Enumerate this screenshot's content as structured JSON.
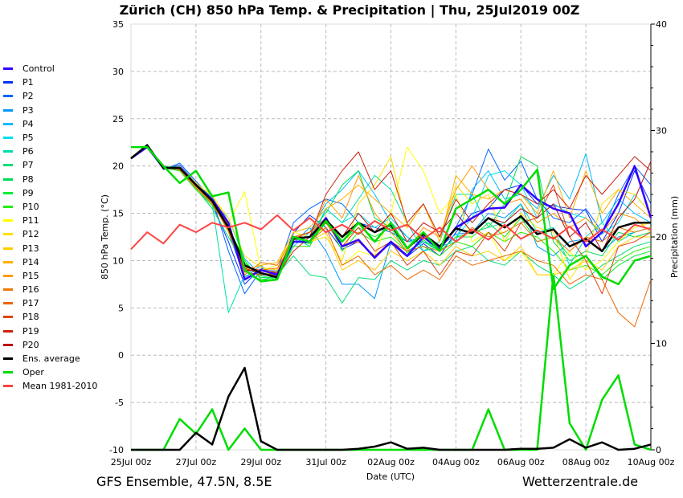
{
  "chart_data": {
    "type": "line",
    "title": "Zürich  (CH)  850 hPa Temp. & Precipitation | Thu, 25Jul2019 00Z",
    "xlabel": "Date (UTC)",
    "ylabel": "850 hPa Temp. (°C)",
    "ylabel_right": "Precipitation (mm)",
    "ylim": [
      -10,
      35
    ],
    "ylim_right": [
      0,
      40
    ],
    "yticks": [
      -10,
      -5,
      0,
      5,
      10,
      15,
      20,
      25,
      30,
      35
    ],
    "yticks_right": [
      0,
      10,
      20,
      30,
      40
    ],
    "x_step_hours": 12,
    "x_range_hours": [
      0,
      384
    ],
    "xtick_labels": [
      "25Jul 00z",
      "27Jul 00z",
      "29Jul 00z",
      "31Jul 00z",
      "02Aug 00z",
      "04Aug 00z",
      "06Aug 00z",
      "08Aug 00z",
      "10Aug 00z"
    ],
    "grid": true,
    "legend_position": "left-outside",
    "temperature_series": [
      {
        "name": "Control",
        "color": "#3300ff",
        "width": 2.5,
        "values": [
          20.8,
          22.0,
          19.8,
          19.8,
          18.0,
          16.5,
          14.0,
          8.0,
          9.0,
          8.5,
          12.0,
          12.0,
          14.5,
          11.5,
          12.2,
          10.3,
          12.0,
          10.5,
          12.5,
          11.2,
          13.5,
          14.5,
          15.5,
          15.6,
          18.0,
          16.5,
          15.5,
          15.0,
          11.5,
          13.0,
          16.0,
          20.0,
          14.5
        ]
      },
      {
        "name": "P1",
        "color": "#0033ff",
        "width": 1,
        "values": [
          20.9,
          22.1,
          19.7,
          20.1,
          18.2,
          16.0,
          12.0,
          7.5,
          9.2,
          8.6,
          12.9,
          14.8,
          13.5,
          11.2,
          12.0,
          10.5,
          11.8,
          10.4,
          11.8,
          10.5,
          13.0,
          15.0,
          15.5,
          17.5,
          18.0,
          16.0,
          15.8,
          15.5,
          15.3,
          12.0,
          15.0,
          19.5,
          16.0
        ]
      },
      {
        "name": "P2",
        "color": "#0066ff",
        "width": 1,
        "values": [
          20.8,
          22.3,
          19.6,
          20.3,
          18.4,
          16.5,
          11.0,
          6.5,
          9.0,
          8.9,
          14.0,
          15.5,
          16.5,
          16.0,
          14.0,
          13.5,
          13.0,
          12.0,
          12.5,
          11.5,
          13.5,
          17.0,
          21.8,
          18.5,
          20.5,
          16.5,
          14.5,
          14.0,
          15.5,
          13.0,
          17.0,
          20.0,
          18.0
        ]
      },
      {
        "name": "P3",
        "color": "#0099ff",
        "width": 1,
        "values": [
          20.8,
          22.0,
          20.0,
          19.6,
          18.0,
          16.4,
          13.0,
          8.2,
          9.5,
          8.0,
          11.8,
          13.5,
          11.0,
          7.5,
          7.5,
          6.0,
          12.0,
          11.0,
          12.0,
          11.5,
          12.8,
          13.0,
          15.0,
          14.5,
          16.0,
          11.5,
          10.5,
          12.0,
          12.3,
          11.0,
          12.5,
          13.0,
          13.5
        ]
      },
      {
        "name": "P4",
        "color": "#00bbff",
        "width": 1,
        "values": [
          20.9,
          22.2,
          19.8,
          19.9,
          17.8,
          16.2,
          14.5,
          10.2,
          8.5,
          8.4,
          11.5,
          13.0,
          16.0,
          17.5,
          19.5,
          17.0,
          14.0,
          12.5,
          11.0,
          11.5,
          12.0,
          17.5,
          19.5,
          16.5,
          17.0,
          15.5,
          19.0,
          16.5,
          21.3,
          14.0,
          16.5,
          15.0,
          14.0
        ]
      },
      {
        "name": "P5",
        "color": "#00ddee",
        "width": 1,
        "values": [
          20.8,
          22.2,
          19.8,
          19.8,
          17.9,
          16.8,
          13.2,
          9.0,
          8.6,
          8.7,
          12.0,
          12.0,
          15.5,
          14.0,
          15.0,
          13.5,
          14.5,
          12.5,
          11.5,
          11.0,
          12.5,
          14.5,
          19.0,
          19.5,
          18.0,
          14.5,
          16.0,
          15.0,
          14.5,
          12.8,
          14.0,
          17.0,
          15.0
        ]
      },
      {
        "name": "P6",
        "color": "#00ddaa",
        "width": 1,
        "values": [
          20.8,
          22.2,
          19.8,
          19.5,
          17.5,
          16.0,
          4.5,
          8.5,
          8.0,
          8.3,
          12.5,
          11.5,
          15.5,
          14.0,
          16.5,
          19.0,
          17.5,
          14.0,
          11.0,
          12.0,
          17.0,
          17.0,
          13.5,
          14.0,
          16.0,
          13.0,
          13.5,
          9.5,
          12.5,
          14.0,
          12.0,
          13.0,
          13.5
        ]
      },
      {
        "name": "P7",
        "color": "#00dd77",
        "width": 1,
        "values": [
          20.8,
          22.2,
          19.9,
          19.7,
          17.6,
          15.5,
          12.5,
          9.5,
          8.7,
          8.5,
          10.5,
          8.5,
          8.2,
          5.5,
          8.2,
          8.0,
          10.0,
          9.0,
          10.0,
          9.5,
          11.0,
          11.5,
          10.0,
          9.5,
          11.0,
          9.5,
          8.5,
          7.0,
          8.0,
          9.5,
          10.5,
          11.5,
          12.0
        ]
      },
      {
        "name": "P8",
        "color": "#00dd55",
        "width": 1,
        "values": [
          20.8,
          22.3,
          19.8,
          19.6,
          17.8,
          16.2,
          13.0,
          9.8,
          8.2,
          8.3,
          12.5,
          13.0,
          15.0,
          18.0,
          19.5,
          14.5,
          13.5,
          12.0,
          12.0,
          11.0,
          12.5,
          13.0,
          13.5,
          16.0,
          21.0,
          20.0,
          12.0,
          10.0,
          11.0,
          10.5,
          13.0,
          12.5,
          13.0
        ]
      },
      {
        "name": "P9",
        "color": "#00ee33",
        "width": 1,
        "values": [
          20.8,
          22.1,
          19.9,
          19.9,
          18.1,
          16.4,
          13.6,
          9.6,
          8.4,
          8.0,
          12.0,
          11.8,
          14.0,
          12.0,
          13.5,
          12.5,
          13.5,
          10.8,
          12.2,
          11.0,
          12.5,
          12.5,
          14.0,
          12.5,
          14.5,
          12.0,
          12.5,
          10.5,
          10.5,
          8.0,
          9.5,
          10.5,
          11.0
        ]
      },
      {
        "name": "P10",
        "color": "#22ee00",
        "width": 1,
        "values": [
          20.8,
          22.2,
          19.8,
          19.5,
          17.5,
          15.8,
          13.5,
          10.0,
          8.0,
          8.0,
          11.5,
          11.5,
          14.5,
          11.0,
          13.0,
          12.0,
          12.5,
          11.0,
          11.5,
          10.5,
          12.0,
          11.5,
          13.0,
          12.0,
          13.0,
          12.5,
          11.0,
          9.0,
          9.5,
          8.5,
          10.0,
          11.0,
          11.5
        ]
      },
      {
        "name": "P11",
        "color": "#ffff00",
        "width": 1,
        "values": [
          20.9,
          22.0,
          19.7,
          19.8,
          18.0,
          17.0,
          14.0,
          17.3,
          9.0,
          9.5,
          13.0,
          12.5,
          13.5,
          9.5,
          11.0,
          10.5,
          15.0,
          22.0,
          19.5,
          15.0,
          17.0,
          12.0,
          13.0,
          10.0,
          11.0,
          8.5,
          8.5,
          11.0,
          9.0,
          10.0,
          12.0,
          13.5,
          14.0
        ]
      },
      {
        "name": "P12",
        "color": "#ffe000",
        "width": 1,
        "values": [
          20.9,
          22.0,
          19.7,
          19.9,
          18.2,
          16.8,
          14.5,
          10.5,
          9.3,
          9.0,
          12.5,
          12.0,
          12.5,
          10.0,
          16.0,
          18.0,
          21.0,
          13.5,
          16.0,
          12.5,
          18.0,
          16.0,
          17.0,
          12.0,
          15.0,
          13.5,
          13.0,
          8.0,
          10.5,
          16.0,
          17.5,
          17.0,
          15.0
        ]
      },
      {
        "name": "P13",
        "color": "#ffcc00",
        "width": 1,
        "values": [
          20.8,
          22.1,
          19.8,
          19.8,
          18.0,
          16.3,
          13.0,
          9.2,
          8.7,
          8.5,
          12.0,
          12.0,
          13.0,
          9.0,
          10.0,
          9.0,
          11.0,
          10.0,
          11.0,
          9.5,
          11.5,
          10.5,
          11.0,
          10.0,
          11.5,
          8.5,
          8.5,
          9.0,
          10.0,
          9.0,
          11.5,
          12.5,
          12.5
        ]
      },
      {
        "name": "P14",
        "color": "#ffb000",
        "width": 1,
        "values": [
          20.9,
          22.2,
          19.7,
          19.8,
          18.0,
          16.5,
          13.8,
          9.0,
          9.5,
          9.8,
          13.0,
          13.5,
          15.5,
          16.5,
          18.0,
          16.5,
          15.0,
          13.5,
          16.0,
          12.0,
          19.0,
          17.0,
          16.5,
          17.5,
          17.0,
          15.0,
          19.5,
          14.5,
          19.5,
          15.0,
          17.5,
          16.0,
          14.5
        ]
      },
      {
        "name": "P15",
        "color": "#ff9900",
        "width": 1,
        "values": [
          20.8,
          22.1,
          19.8,
          19.7,
          17.8,
          16.1,
          13.4,
          9.0,
          9.0,
          8.8,
          12.2,
          12.5,
          16.5,
          14.5,
          19.0,
          15.0,
          13.0,
          11.0,
          13.5,
          12.5,
          17.5,
          20.0,
          17.5,
          16.0,
          16.5,
          14.0,
          15.0,
          13.5,
          14.5,
          13.0,
          15.0,
          14.5,
          13.0
        ]
      },
      {
        "name": "P16",
        "color": "#ee7700",
        "width": 1,
        "values": [
          20.8,
          22.2,
          19.9,
          19.6,
          17.7,
          16.0,
          13.2,
          8.5,
          9.8,
          9.5,
          12.5,
          13.0,
          14.0,
          11.5,
          12.0,
          10.5,
          12.0,
          11.0,
          11.5,
          11.0,
          12.0,
          13.5,
          12.5,
          13.0,
          14.0,
          12.0,
          12.5,
          11.0,
          12.5,
          12.0,
          13.5,
          13.0,
          13.5
        ]
      },
      {
        "name": "P17",
        "color": "#ee6600",
        "width": 1,
        "values": [
          20.8,
          22.1,
          19.8,
          19.7,
          17.9,
          16.5,
          13.5,
          9.3,
          9.0,
          9.2,
          12.0,
          12.0,
          13.5,
          9.5,
          10.5,
          8.5,
          9.5,
          8.0,
          9.0,
          8.0,
          10.5,
          9.5,
          10.0,
          10.5,
          11.0,
          10.0,
          9.5,
          7.5,
          8.5,
          8.0,
          4.5,
          3.0,
          8.0
        ]
      },
      {
        "name": "P18",
        "color": "#dd4411",
        "width": 1,
        "values": [
          20.8,
          22.2,
          19.8,
          19.8,
          18.1,
          16.3,
          13.2,
          8.8,
          8.5,
          8.6,
          12.3,
          13.0,
          14.5,
          11.5,
          13.5,
          11.0,
          12.0,
          9.5,
          11.0,
          8.5,
          11.0,
          10.5,
          13.0,
          11.0,
          14.0,
          14.5,
          18.0,
          12.5,
          10.0,
          6.5,
          11.5,
          12.0,
          13.0
        ]
      },
      {
        "name": "P19",
        "color": "#cc2211",
        "width": 1,
        "values": [
          20.8,
          22.2,
          19.8,
          19.8,
          18.0,
          16.2,
          13.4,
          9.2,
          8.6,
          8.4,
          11.0,
          12.5,
          17.0,
          19.5,
          21.5,
          17.5,
          19.5,
          14.0,
          16.0,
          12.5,
          16.5,
          14.0,
          16.0,
          17.5,
          17.0,
          16.0,
          17.5,
          15.5,
          19.0,
          17.0,
          19.0,
          21.0,
          19.5
        ]
      },
      {
        "name": "P20",
        "color": "#bb1111",
        "width": 1,
        "values": [
          20.8,
          22.2,
          19.8,
          19.8,
          18.0,
          16.4,
          13.6,
          9.0,
          8.9,
          8.7,
          12.5,
          12.5,
          14.0,
          12.5,
          15.0,
          13.0,
          15.0,
          12.0,
          14.0,
          13.0,
          15.0,
          13.0,
          14.5,
          14.0,
          15.5,
          14.5,
          16.0,
          12.5,
          14.0,
          11.0,
          14.5,
          16.5,
          20.5
        ]
      },
      {
        "name": "Ens. average",
        "color": "#000000",
        "width": 2.5,
        "values": [
          20.8,
          22.2,
          19.8,
          19.8,
          18.0,
          16.3,
          13.5,
          9.5,
          8.7,
          8.2,
          12.3,
          12.5,
          14.3,
          12.5,
          14.0,
          13.0,
          13.8,
          11.3,
          12.8,
          11.5,
          13.4,
          12.9,
          14.5,
          13.5,
          14.7,
          12.8,
          13.3,
          11.5,
          12.3,
          11.0,
          13.5,
          14.0,
          14.0
        ]
      },
      {
        "name": "Oper",
        "color": "#00dd00",
        "width": 2.5,
        "values": [
          22.0,
          22.0,
          20.0,
          18.2,
          19.5,
          16.8,
          17.2,
          9.0,
          7.8,
          8.0,
          12.5,
          12.0,
          14.2,
          12.0,
          14.0,
          12.0,
          14.0,
          11.3,
          13.0,
          11.0,
          15.5,
          16.5,
          17.5,
          16.0,
          17.5,
          19.6,
          7.0,
          9.5,
          10.5,
          8.3,
          7.5,
          10.0,
          10.5
        ]
      },
      {
        "name": "Mean 1981-2010",
        "color": "#ff4444",
        "width": 2,
        "values": [
          11.2,
          13.0,
          11.8,
          13.8,
          13.0,
          14.0,
          13.5,
          14.0,
          13.3,
          14.8,
          13.2,
          14.5,
          13.0,
          13.8,
          12.8,
          14.2,
          13.2,
          13.8,
          12.3,
          13.5,
          12.0,
          13.3,
          12.2,
          13.8,
          12.3,
          13.2,
          12.3,
          13.6,
          12.0,
          13.3,
          12.2,
          13.8,
          13.3
        ]
      }
    ],
    "precipitation_series": [
      {
        "name": "Oper",
        "color": "#00dd00",
        "width": 2.5,
        "values": [
          0,
          0,
          0,
          2.9,
          1.5,
          3.8,
          0,
          2.0,
          0,
          0,
          0,
          0,
          0,
          0,
          0,
          0,
          0,
          0,
          0,
          0,
          0,
          0,
          3.8,
          0,
          0,
          0,
          16.5,
          2.5,
          0,
          4.7,
          7.0,
          0.5,
          0
        ]
      },
      {
        "name": "Ens. average",
        "color": "#000000",
        "width": 2.5,
        "values": [
          0,
          0,
          0,
          0,
          1.6,
          0.5,
          5.0,
          7.7,
          0.8,
          0,
          0,
          0,
          0,
          0,
          0.1,
          0.3,
          0.7,
          0.1,
          0.2,
          0,
          0,
          0,
          0,
          0,
          0.1,
          0.1,
          0.2,
          1.0,
          0.2,
          0.7,
          0,
          0.1,
          0.5
        ]
      }
    ]
  },
  "footer": {
    "left": "GFS Ensemble, 47.5N, 8.5E",
    "right": "Wetterzentrale.de"
  }
}
